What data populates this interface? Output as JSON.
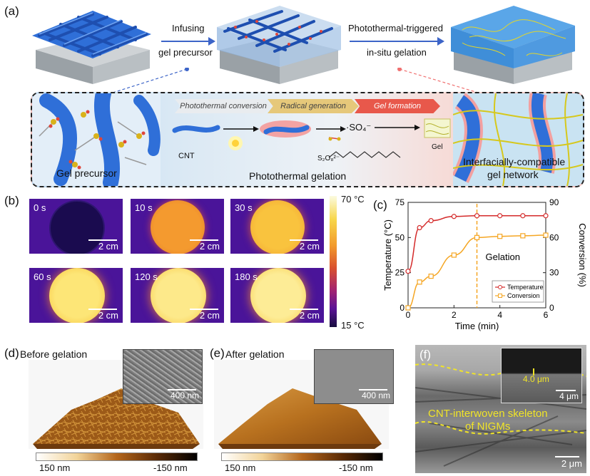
{
  "panel_a": {
    "label": "(a)",
    "arrow1_top": "Infusing",
    "arrow1_bottom": "gel precursor",
    "arrow2_top": "Photothermal-triggered",
    "arrow2_bottom": "in-situ gelation",
    "steps": [
      "Photothermal conversion",
      "Radical generation",
      "Gel formation"
    ],
    "cnt_label": "CNT",
    "s2o8_label": "S₂O₈²⁻",
    "so4_label": "·SO₄⁻",
    "gel_label": "Gel",
    "left_caption": "Gel precursor",
    "mid_caption": "Photothermal gelation",
    "right_caption_1": "Interfacially-compatible",
    "right_caption_2": "gel network",
    "colors": {
      "cnt": "#2f6fd8",
      "gel_line": "#e3d62a",
      "arrow": "#3c64c8",
      "pink": "#f08080"
    }
  },
  "panel_b": {
    "label": "(b)",
    "frames": [
      {
        "time": "0 s",
        "scale": "2 cm"
      },
      {
        "time": "10 s",
        "scale": "2 cm"
      },
      {
        "time": "30 s",
        "scale": "2 cm"
      },
      {
        "time": "60 s",
        "scale": "2 cm"
      },
      {
        "time": "120 s",
        "scale": "2 cm"
      },
      {
        "time": "180 s",
        "scale": "2 cm"
      }
    ],
    "colorbar_max": "70 °C",
    "colorbar_min": "15 °C"
  },
  "chart_data": {
    "type": "line",
    "panel_label": "(c)",
    "xlabel": "Time (min)",
    "ylabel_left": "Temperature (°C)",
    "ylabel_right": "Conversion (%)",
    "xlim": [
      0,
      6
    ],
    "ylim_left": [
      0,
      75
    ],
    "ylim_right": [
      0,
      90
    ],
    "x_ticks": [
      0,
      2,
      4,
      6
    ],
    "y_ticks_left": [
      0,
      25,
      50,
      75
    ],
    "y_ticks_right": [
      0,
      30,
      60,
      90
    ],
    "annotation": "Gelation",
    "gelation_x": 3,
    "series": [
      {
        "name": "Temperature",
        "axis": "left",
        "color": "#d42a2a",
        "x": [
          0,
          0.5,
          1,
          2,
          3,
          4,
          5,
          6
        ],
        "y": [
          26,
          57,
          62,
          65,
          65.5,
          65.5,
          65.5,
          65.5
        ]
      },
      {
        "name": "Conversion",
        "axis": "right",
        "color": "#f5a623",
        "x": [
          0,
          0.5,
          1,
          2,
          3,
          4,
          5,
          6
        ],
        "y": [
          0,
          22,
          27,
          45,
          60,
          61,
          61.5,
          62
        ]
      }
    ],
    "legend_position": "bottom-right"
  },
  "panel_d": {
    "label": "(d)",
    "title": "Before gelation",
    "inset_scale": "400 nm",
    "bar_left": "150 nm",
    "bar_right": "-150 nm"
  },
  "panel_e": {
    "label": "(e)",
    "title": "After gelation",
    "inset_scale": "400 nm",
    "bar_left": "150 nm",
    "bar_right": "-150 nm"
  },
  "panel_f": {
    "label": "(f)",
    "inset_thickness": "4.0 μm",
    "inset_scale": "4 μm",
    "caption_1": "CNT-interwoven skeleton",
    "caption_2": "of NIGMs",
    "scale": "2 μm"
  }
}
